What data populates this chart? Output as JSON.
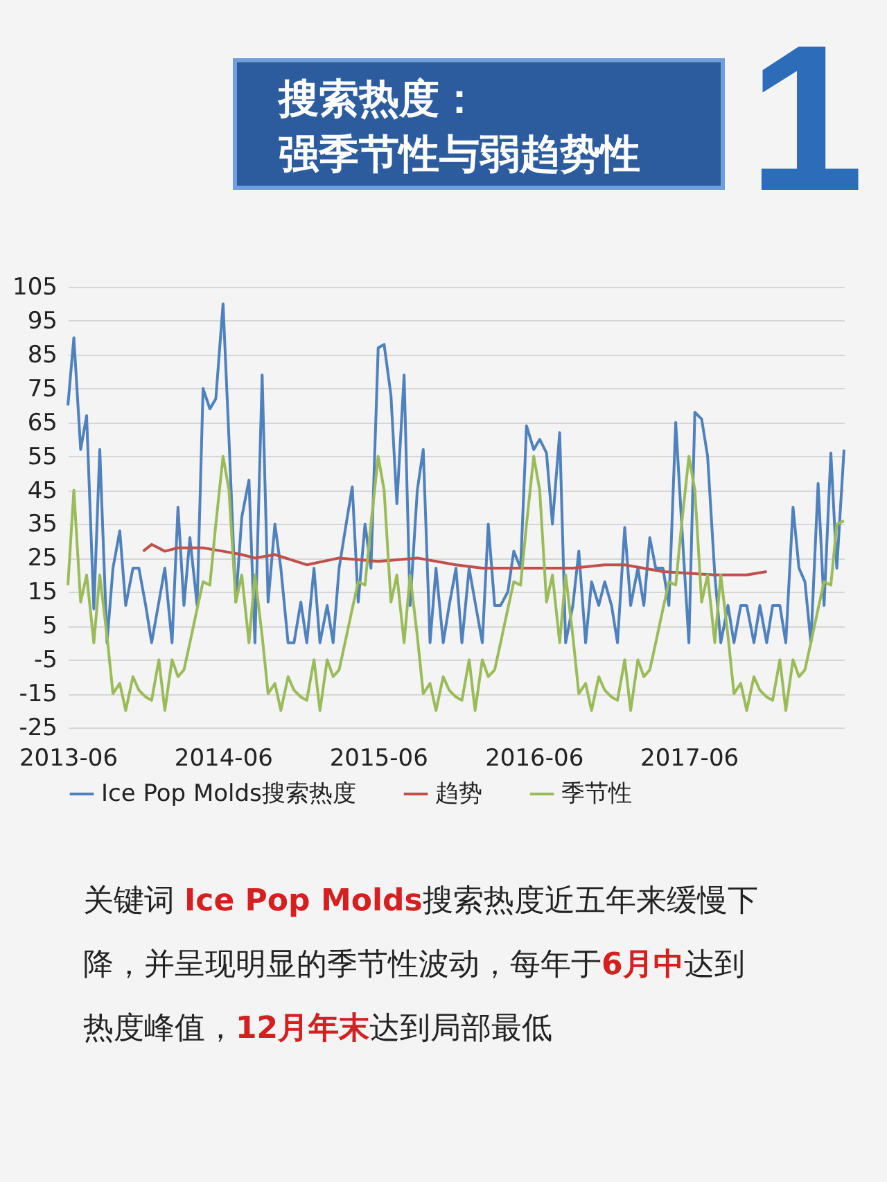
{
  "chart_data": {
    "type": "line",
    "title": "搜索热度：",
    "subtitle": "强季节性与弱趋势性",
    "annotations": [
      "1",
      "关键词 ",
      "Ice Pop Molds",
      "搜索热度近五年来缓慢下降，并呈现明显的季节性波动，每年于",
      "6月中",
      "达到热度峰值，",
      "12月年末",
      "达到局部最低"
    ],
    "x": [
      "2013-06-01",
      "2013-06-15",
      "2013-07-01",
      "2013-07-15",
      "2013-08-01",
      "2013-08-15",
      "2013-09-01",
      "2013-09-15",
      "2013-10-01",
      "2013-10-15",
      "2013-11-01",
      "2013-11-15",
      "2013-12-01",
      "2013-12-15",
      "2014-01-01",
      "2014-01-15",
      "2014-02-01",
      "2014-02-15",
      "2014-03-01",
      "2014-03-15",
      "2014-04-01",
      "2014-04-15",
      "2014-05-01",
      "2014-05-15",
      "2014-06-01",
      "2014-06-15",
      "2014-07-01",
      "2014-07-15",
      "2014-08-01",
      "2014-08-15",
      "2014-09-01",
      "2014-09-15",
      "2014-10-01",
      "2014-10-15",
      "2014-11-01",
      "2014-11-15",
      "2014-12-01",
      "2014-12-15",
      "2015-01-01",
      "2015-01-15",
      "2015-02-01",
      "2015-02-15",
      "2015-03-01",
      "2015-03-15",
      "2015-04-01",
      "2015-04-15",
      "2015-05-01",
      "2015-05-15",
      "2015-06-01",
      "2015-06-15",
      "2015-07-01",
      "2015-07-15",
      "2015-08-01",
      "2015-08-15",
      "2015-09-01",
      "2015-09-15",
      "2015-10-01",
      "2015-10-15",
      "2015-11-01",
      "2015-11-15",
      "2015-12-01",
      "2015-12-15",
      "2016-01-01",
      "2016-01-15",
      "2016-02-01",
      "2016-02-15",
      "2016-03-01",
      "2016-03-15",
      "2016-04-01",
      "2016-04-15",
      "2016-05-01",
      "2016-05-15",
      "2016-06-01",
      "2016-06-15",
      "2016-07-01",
      "2016-07-15",
      "2016-08-01",
      "2016-08-15",
      "2016-09-01",
      "2016-09-15",
      "2016-10-01",
      "2016-10-15",
      "2016-11-01",
      "2016-11-15",
      "2016-12-01",
      "2016-12-15",
      "2017-01-01",
      "2017-01-15",
      "2017-02-01",
      "2017-02-15",
      "2017-03-01",
      "2017-03-15",
      "2017-04-01",
      "2017-04-15",
      "2017-05-01",
      "2017-05-15",
      "2017-06-01",
      "2017-06-15",
      "2017-07-01",
      "2017-07-15",
      "2017-08-01",
      "2017-08-15",
      "2017-09-01",
      "2017-09-15",
      "2017-10-01",
      "2017-10-15",
      "2017-11-01",
      "2017-11-15",
      "2017-12-01",
      "2017-12-15",
      "2018-01-01",
      "2018-01-15",
      "2018-02-01",
      "2018-02-15",
      "2018-03-01",
      "2018-03-15",
      "2018-04-01",
      "2018-04-15",
      "2018-05-01",
      "2018-05-15",
      "2018-06-01"
    ],
    "series": [
      {
        "name": "Ice Pop Molds搜索热度",
        "color": "#4f81bd",
        "values": [
          70,
          90,
          57,
          67,
          10,
          57,
          0,
          22,
          33,
          11,
          22,
          22,
          11,
          0,
          12,
          22,
          0,
          40,
          11,
          31,
          11,
          75,
          69,
          72,
          100,
          60,
          12,
          37,
          48,
          0,
          79,
          12,
          35,
          22,
          0,
          0,
          12,
          0,
          22,
          0,
          11,
          0,
          22,
          33,
          46,
          12,
          35,
          22,
          87,
          88,
          73,
          41,
          79,
          11,
          45,
          57,
          0,
          22,
          0,
          11,
          22,
          0,
          22,
          12,
          0,
          35,
          11,
          11,
          15,
          27,
          22,
          64,
          57,
          60,
          56,
          35,
          62,
          0,
          11,
          27,
          0,
          18,
          11,
          18,
          11,
          0,
          34,
          11,
          22,
          11,
          31,
          22,
          22,
          11,
          65,
          35,
          0,
          68,
          66,
          55,
          20,
          0,
          11,
          0,
          11,
          11,
          0,
          11,
          0,
          11,
          11,
          0,
          40,
          22,
          18,
          0,
          47,
          11,
          56,
          22,
          57
        ]
      },
      {
        "name": "趋势",
        "color": "#c0504d",
        "x": [
          "2013-11-25",
          "2013-12-15",
          "2014-01-15",
          "2014-02-15",
          "2014-04-15",
          "2014-06-01",
          "2014-07-15",
          "2014-08-15",
          "2014-10-01",
          "2014-12-15",
          "2015-03-01",
          "2015-06-01",
          "2015-09-01",
          "2015-12-01",
          "2016-02-01",
          "2016-05-01",
          "2016-07-15",
          "2016-09-01",
          "2016-11-15",
          "2017-01-01",
          "2017-04-01",
          "2017-08-01",
          "2017-10-15",
          "2017-12-01"
        ],
        "values": [
          27,
          29,
          27,
          28,
          28,
          27,
          26,
          25,
          26,
          23,
          25,
          24,
          25,
          23,
          22,
          22,
          22,
          22,
          23,
          23,
          21,
          20,
          20,
          21
        ]
      },
      {
        "name": "季节性",
        "color": "#9bbb59",
        "values": [
          17,
          45,
          12,
          20,
          0,
          20,
          2,
          -15,
          -12,
          -20,
          -10,
          -14,
          -16,
          -17,
          -5,
          -20,
          -5,
          -10,
          -8,
          0,
          10,
          18,
          17,
          35,
          55,
          45,
          12,
          20,
          0,
          20,
          2,
          -15,
          -12,
          -20,
          -10,
          -14,
          -16,
          -17,
          -5,
          -20,
          -5,
          -10,
          -8,
          0,
          10,
          18,
          17,
          35,
          55,
          45,
          12,
          20,
          0,
          20,
          2,
          -15,
          -12,
          -20,
          -10,
          -14,
          -16,
          -17,
          -5,
          -20,
          -5,
          -10,
          -8,
          0,
          10,
          18,
          17,
          35,
          55,
          45,
          12,
          20,
          0,
          20,
          2,
          -15,
          -12,
          -20,
          -10,
          -14,
          -16,
          -17,
          -5,
          -20,
          -5,
          -10,
          -8,
          0,
          10,
          18,
          17,
          35,
          55,
          45,
          12,
          20,
          0,
          20,
          2,
          -15,
          -12,
          -20,
          -10,
          -14,
          -16,
          -17,
          -5,
          -20,
          -5,
          -10,
          -8,
          0,
          10,
          18,
          17,
          35,
          36
        ]
      }
    ],
    "xlim": [
      "2013-06",
      "2018-06"
    ],
    "xticks": [
      {
        "value": "2013-06",
        "label": "2013-06"
      },
      {
        "value": "2014-06",
        "label": "2014-06"
      },
      {
        "value": "2015-06",
        "label": "2015-06"
      },
      {
        "value": "2016-06",
        "label": "2016-06"
      },
      {
        "value": "2017-06",
        "label": "2017-06"
      }
    ],
    "ylim": [
      -25,
      105
    ],
    "yticks": [
      -25,
      -15,
      -5,
      5,
      15,
      25,
      35,
      45,
      55,
      65,
      75,
      85,
      95,
      105
    ],
    "grid": "y",
    "legend": "bottom",
    "marker": "none",
    "line_style": "solid"
  }
}
